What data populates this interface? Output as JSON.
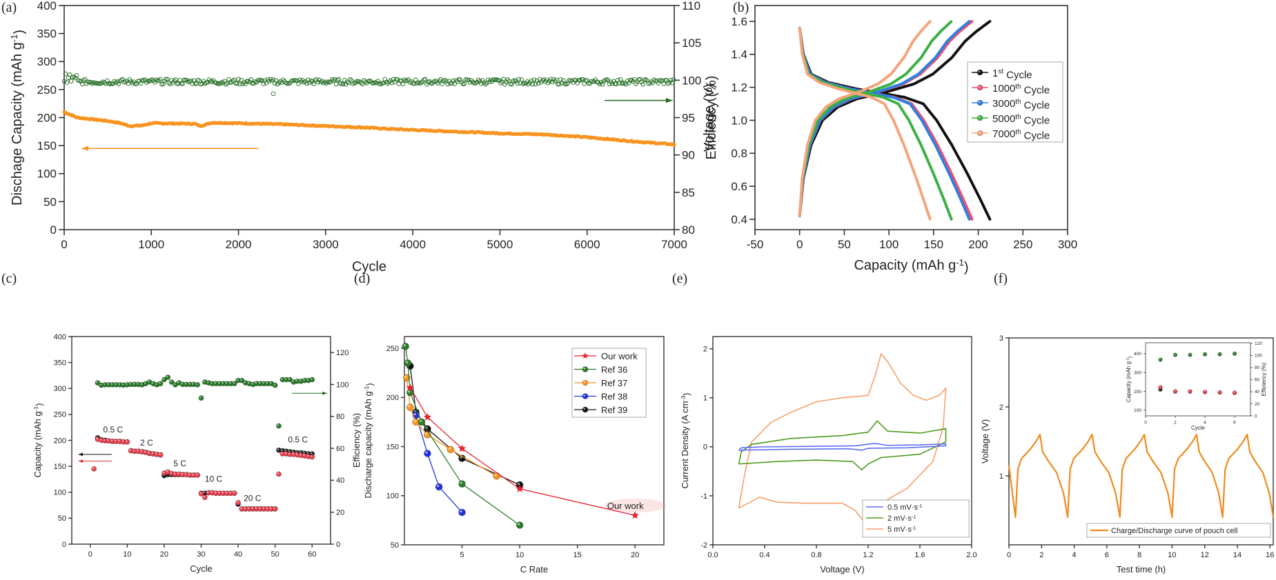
{
  "panel_labels": [
    "(a)",
    "(b)",
    "(c)",
    "(d)",
    "(e)",
    "(f)"
  ],
  "colors": {
    "capacity_orange": "#f7931e",
    "efficiency_green": "#1f6b1f",
    "discharge_red": "#e8404f",
    "charge_black": "#222222"
  },
  "chart_data": [
    {
      "id": "a",
      "type": "scatter",
      "xlabel": "Cycle",
      "ylabel": {
        "text": "Dischage Capacity (mAh g",
        "sup": "-1",
        "tail": ")"
      },
      "y2label": {
        "text": "Efficiency (%)"
      },
      "xlim": [
        0,
        7000
      ],
      "ylim": [
        0,
        400
      ],
      "y2lim": [
        80,
        110
      ],
      "xticks": [
        "0",
        "1000",
        "2000",
        "3000",
        "4000",
        "5000",
        "6000",
        "7000"
      ],
      "yticks": [
        "0",
        "50",
        "100",
        "150",
        "200",
        "250",
        "300",
        "350",
        "400"
      ],
      "y2ticks": [
        "80",
        "85",
        "90",
        "95",
        "100",
        "105",
        "110"
      ],
      "series": [
        {
          "role": "discharge capacity",
          "axis": "left",
          "color": "#f7931e",
          "points": [
            [
              0,
              210
            ],
            [
              150,
              200
            ],
            [
              500,
              194
            ],
            [
              650,
              190
            ],
            [
              750,
              185
            ],
            [
              900,
              186
            ],
            [
              1000,
              190
            ],
            [
              1500,
              189
            ],
            [
              1560,
              185
            ],
            [
              1700,
              191
            ],
            [
              2000,
              190
            ],
            [
              2500,
              188
            ],
            [
              3000,
              185
            ],
            [
              3500,
              182
            ],
            [
              3700,
              180
            ],
            [
              4000,
              178
            ],
            [
              4500,
              175
            ],
            [
              5000,
              172
            ],
            [
              5500,
              170
            ],
            [
              6000,
              165
            ],
            [
              6500,
              158
            ],
            [
              7000,
              152
            ]
          ]
        },
        {
          "role": "efficiency",
          "axis": "right",
          "color": "#1f6b1f",
          "mean": 99.8,
          "spread": 0.35,
          "outlier": [
            2400,
            98.2
          ]
        }
      ],
      "arrows": [
        {
          "color": "#f7931e",
          "direction": "left",
          "y_axis": "left",
          "y": 145,
          "x_from": 2230,
          "x_to": 200
        },
        {
          "color": "#1f6b1f",
          "direction": "right",
          "y_axis": "right",
          "y": 97.3,
          "x_from": 6200,
          "x_to": 6980
        }
      ]
    },
    {
      "id": "b",
      "type": "line",
      "xlabel": {
        "text": "Capacity (mAh g",
        "sup": "-1",
        "tail": ")"
      },
      "ylabel": {
        "text": "Voltage (V)"
      },
      "xlim": [
        -50,
        300
      ],
      "ylim": [
        0.337,
        1.696
      ],
      "xticks": [
        "-50",
        "0",
        "50",
        "100",
        "150",
        "200",
        "250",
        "300"
      ],
      "yticks": [
        "0.4",
        "0.6",
        "0.8",
        "1.0",
        "1.2",
        "1.4",
        "1.6"
      ],
      "legend_position": "right",
      "series": [
        {
          "num": "1",
          "sup": "st",
          "rest": " Cycle",
          "color": "#111111",
          "capacity": 213
        },
        {
          "num": "1000",
          "sup": "th",
          "rest": " Cycle",
          "color": "#f0506e",
          "capacity": 193
        },
        {
          "num": "3000",
          "sup": "th",
          "rest": " Cycle",
          "color": "#2f7fe0",
          "capacity": 190
        },
        {
          "num": "5000",
          "sup": "th",
          "rest": " Cycle",
          "color": "#3cb043",
          "capacity": 170
        },
        {
          "num": "7000",
          "sup": "th",
          "rest": " Cycle",
          "color": "#f5a47a",
          "capacity": 146
        }
      ]
    },
    {
      "id": "c",
      "type": "scatter",
      "xlabel": {
        "text": "Cycle"
      },
      "ylabel": {
        "text": "Capacity (mAh g",
        "sup": "-1",
        "tail": ")"
      },
      "y2label": {
        "text": "Efficiency (%)"
      },
      "xlim": [
        -5,
        65
      ],
      "ylim": [
        0,
        400
      ],
      "y2lim": [
        0,
        130
      ],
      "xticks": [
        "0",
        "10",
        "20",
        "30",
        "40",
        "50",
        "60"
      ],
      "yticks": [
        "0",
        "50",
        "100",
        "150",
        "200",
        "250",
        "300",
        "350",
        "400"
      ],
      "y2ticks": [
        "0",
        "20",
        "40",
        "60",
        "80",
        "100",
        "120"
      ],
      "rate_labels": [
        {
          "text": "0.5 C",
          "x": 3.5,
          "y": 215
        },
        {
          "text": "2 C",
          "x": 13.5,
          "y": 190
        },
        {
          "text": "5 C",
          "x": 22.5,
          "y": 150
        },
        {
          "text": "10 C",
          "x": 31,
          "y": 120
        },
        {
          "text": "20 C",
          "x": 41.5,
          "y": 83
        },
        {
          "text": "0.5 C",
          "x": 53.5,
          "y": 196
        }
      ],
      "cycles_start": 1,
      "discharge": [
        145,
        202,
        200,
        199,
        199,
        198,
        198,
        198,
        197,
        197,
        180,
        179,
        179,
        178,
        177,
        175,
        174,
        173,
        172,
        137,
        139,
        136,
        135,
        135,
        134,
        134,
        133,
        133,
        133,
        97,
        90,
        99,
        99,
        98,
        98,
        98,
        98,
        98,
        98,
        80,
        68,
        68,
        68,
        68,
        68,
        68,
        68,
        68,
        68,
        68,
        135,
        174,
        174,
        173,
        173,
        172,
        171,
        170,
        169,
        168
      ],
      "charge": [
        null,
        205,
        201,
        200,
        199,
        198,
        198,
        198,
        197,
        197,
        180,
        179,
        179,
        178,
        177,
        175,
        174,
        173,
        172,
        132,
        134,
        134,
        134,
        134,
        134,
        134,
        133,
        133,
        133,
        98,
        98,
        99,
        99,
        98,
        98,
        98,
        98,
        98,
        98,
        77,
        68,
        68,
        68,
        68,
        68,
        68,
        68,
        68,
        68,
        68,
        181,
        180,
        179,
        178,
        177,
        176,
        176,
        175,
        174,
        174
      ],
      "efficiency": [
        null,
        101,
        99.5,
        99.8,
        99.8,
        99.8,
        99.8,
        99.8,
        99.6,
        99.8,
        100,
        100,
        100,
        99.8,
        100.5,
        101.5,
        100.5,
        99.8,
        100.5,
        103,
        104.5,
        101.5,
        99.8,
        101,
        100,
        100,
        100,
        100,
        99.8,
        91.5,
        101.5,
        101,
        100.5,
        100.5,
        100.5,
        100.5,
        100.5,
        100.5,
        100.5,
        102.5,
        102.5,
        101,
        100.5,
        100,
        100.5,
        100.5,
        100.5,
        100.5,
        100.5,
        99.5,
        74,
        103,
        103,
        103,
        101.5,
        102,
        102,
        102.5,
        102.5,
        103
      ],
      "arrows": [
        {
          "color": "#111111",
          "direction": "left",
          "y_axis": "left",
          "y": 173,
          "x_from": 5.8,
          "x_to": -3.2
        },
        {
          "color": "#e8202f",
          "direction": "left",
          "y_axis": "left",
          "y": 160,
          "x_from": 5.8,
          "x_to": -3.2
        },
        {
          "color": "#1f6b1f",
          "direction": "right",
          "y_axis": "right",
          "y": 94.5,
          "x_from": 54.5,
          "x_to": 64
        }
      ]
    },
    {
      "id": "d",
      "type": "line",
      "xlabel": {
        "text": "C Rate"
      },
      "ylabel": {
        "text": "Discharge capacity (mAh g",
        "sup": "-1",
        "tail": ")"
      },
      "xlim": [
        0,
        22.5
      ],
      "ylim": [
        50,
        262
      ],
      "xticks": [
        "5",
        "10",
        "15",
        "20"
      ],
      "yticks": [
        "50",
        "100",
        "150",
        "200",
        "250"
      ],
      "legend_position": "top-right",
      "annotation": "Our work",
      "series": [
        {
          "name": "Our work",
          "color": "#e8202f",
          "marker": "star",
          "points": [
            [
              0.5,
              210
            ],
            [
              2,
              180
            ],
            [
              5,
              148
            ],
            [
              10,
              107
            ],
            [
              20,
              80
            ]
          ]
        },
        {
          "name": "Ref 36",
          "color": "#2a7a2a",
          "marker": "ball",
          "points": [
            [
              0.1,
              252
            ],
            [
              0.3,
              235
            ],
            [
              0.5,
              205
            ],
            [
              1.5,
              175
            ],
            [
              5,
              112
            ],
            [
              10,
              70
            ]
          ]
        },
        {
          "name": "Ref 37",
          "color": "#f7931e",
          "marker": "ball",
          "points": [
            [
              0.2,
              220
            ],
            [
              0.5,
              190
            ],
            [
              1,
              175
            ],
            [
              2,
              162
            ],
            [
              4,
              147
            ],
            [
              8,
              120
            ]
          ]
        },
        {
          "name": "Ref 38",
          "color": "#2233dd",
          "marker": "ball",
          "points": [
            [
              1,
              182
            ],
            [
              2,
              143
            ],
            [
              3,
              109
            ],
            [
              5,
              83
            ]
          ]
        },
        {
          "name": "Ref 39",
          "color": "#111111",
          "marker": "ball",
          "points": [
            [
              0.5,
              232
            ],
            [
              1,
              185
            ],
            [
              2,
              168
            ],
            [
              5,
              138
            ],
            [
              10,
              111
            ]
          ]
        }
      ]
    },
    {
      "id": "e",
      "type": "line",
      "xlabel": {
        "text": "Voltage (V)"
      },
      "ylabel": {
        "text": "Current Density (A cm",
        "sup": "-3",
        "tail": ")"
      },
      "xlim": [
        0,
        2
      ],
      "ylim": [
        -2,
        2.25
      ],
      "xticks": [
        "0.0",
        "0.4",
        "0.8",
        "1.2",
        "1.6",
        "2.0"
      ],
      "yticks": [
        "-2",
        "-1",
        "0",
        "1",
        "2"
      ],
      "legend_position": "bottom-right",
      "series": [
        {
          "name": "0.5 mV·s",
          "sup": "-1",
          "color": "#5b6ef5",
          "points": [
            [
              0.2,
              -0.07
            ],
            [
              0.22,
              -0.02
            ],
            [
              0.4,
              0.0
            ],
            [
              0.8,
              0.01
            ],
            [
              1.1,
              0.02
            ],
            [
              1.25,
              0.07
            ],
            [
              1.35,
              0.03
            ],
            [
              1.6,
              0.04
            ],
            [
              1.8,
              0.06
            ],
            [
              1.8,
              0.02
            ],
            [
              1.5,
              -0.02
            ],
            [
              1.2,
              -0.03
            ],
            [
              1.15,
              -0.07
            ],
            [
              1.05,
              -0.04
            ],
            [
              0.6,
              -0.05
            ],
            [
              0.2,
              -0.07
            ]
          ]
        },
        {
          "name": "2 mV·s",
          "sup": "-1",
          "color": "#4d9a1c",
          "points": [
            [
              0.2,
              -0.35
            ],
            [
              0.22,
              -0.1
            ],
            [
              0.3,
              0.05
            ],
            [
              0.6,
              0.17
            ],
            [
              1.0,
              0.23
            ],
            [
              1.2,
              0.3
            ],
            [
              1.27,
              0.53
            ],
            [
              1.35,
              0.32
            ],
            [
              1.6,
              0.28
            ],
            [
              1.8,
              0.37
            ],
            [
              1.8,
              0.1
            ],
            [
              1.6,
              -0.15
            ],
            [
              1.3,
              -0.22
            ],
            [
              1.2,
              -0.35
            ],
            [
              1.15,
              -0.47
            ],
            [
              1.08,
              -0.3
            ],
            [
              0.8,
              -0.27
            ],
            [
              0.5,
              -0.3
            ],
            [
              0.2,
              -0.35
            ]
          ]
        },
        {
          "name": "5 mV·s",
          "sup": "-1",
          "color": "#f5a06a",
          "points": [
            [
              0.2,
              -1.25
            ],
            [
              0.25,
              -0.5
            ],
            [
              0.3,
              0.1
            ],
            [
              0.45,
              0.5
            ],
            [
              0.6,
              0.7
            ],
            [
              0.8,
              0.92
            ],
            [
              1.0,
              1.0
            ],
            [
              1.2,
              1.05
            ],
            [
              1.26,
              1.5
            ],
            [
              1.3,
              1.9
            ],
            [
              1.36,
              1.7
            ],
            [
              1.45,
              1.3
            ],
            [
              1.55,
              1.05
            ],
            [
              1.65,
              0.95
            ],
            [
              1.75,
              1.05
            ],
            [
              1.8,
              1.2
            ],
            [
              1.78,
              0.4
            ],
            [
              1.7,
              -0.3
            ],
            [
              1.5,
              -0.85
            ],
            [
              1.3,
              -1.15
            ],
            [
              1.2,
              -1.4
            ],
            [
              1.16,
              -1.5
            ],
            [
              1.1,
              -1.3
            ],
            [
              1.0,
              -1.15
            ],
            [
              0.7,
              -1.15
            ],
            [
              0.5,
              -1.13
            ],
            [
              0.36,
              -1.03
            ],
            [
              0.2,
              -1.25
            ]
          ]
        }
      ]
    },
    {
      "id": "f",
      "type": "line",
      "xlabel": {
        "text": "Test time (h)"
      },
      "ylabel": {
        "text": "Voltage (V)"
      },
      "xlim": [
        0,
        16.2
      ],
      "ylim": [
        0,
        3
      ],
      "xticks": [
        "0",
        "2",
        "4",
        "6",
        "8",
        "10",
        "12",
        "14",
        "16"
      ],
      "yticks": [
        "1",
        "2",
        "3"
      ],
      "legend_position": "bottom-right",
      "series": [
        {
          "name": "Charge/Discharge curve of pouch cell",
          "color": "#f08a1c",
          "start_voltage": 1.15,
          "min_voltage": 0.4,
          "max_voltage": 1.6,
          "minima_times": [
            0.4,
            3.6,
            6.8,
            10.0,
            13.1,
            16.2
          ],
          "peak_times": [
            1.9,
            5.1,
            8.3,
            11.5,
            14.6
          ]
        }
      ],
      "inset": {
        "type": "scatter",
        "xlabel": {
          "text": "Cycle"
        },
        "ylabel": {
          "text": "Capacity (mAh g",
          "sup": "-1",
          "tail": ")"
        },
        "y2label": {
          "text": "Efficiency (%)"
        },
        "xlim": [
          0,
          7.07
        ],
        "ylim": [
          70,
          458
        ],
        "y2lim": [
          0,
          121
        ],
        "xticks": [
          "0",
          "2",
          "4",
          "6"
        ],
        "yticks": [
          "100",
          "200",
          "300",
          "400"
        ],
        "y2ticks": [
          "0",
          "20",
          "40",
          "60",
          "80",
          "100",
          "120"
        ],
        "cycles": [
          1,
          2,
          3,
          4,
          5,
          6
        ],
        "discharge": [
          222,
          200,
          200,
          197,
          195,
          193
        ],
        "charge": [
          210,
          199,
          199,
          196,
          194,
          192
        ],
        "efficiency": [
          93,
          101,
          101,
          102,
          102,
          103
        ]
      }
    }
  ]
}
